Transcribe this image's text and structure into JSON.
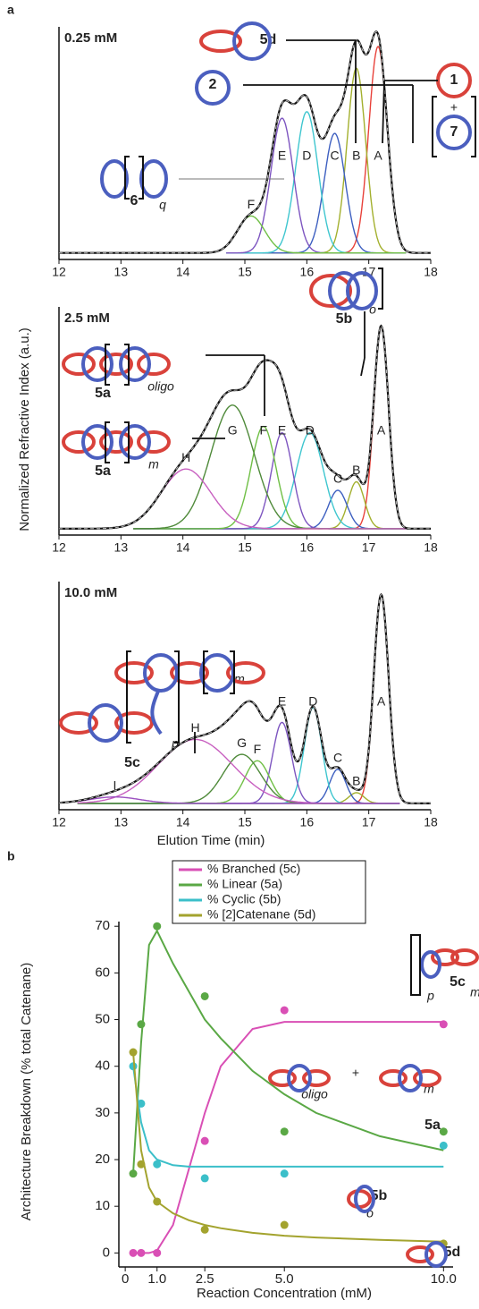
{
  "panel_labels": [
    "a",
    "b"
  ],
  "chart_data": [
    {
      "type": "chromatogram",
      "title": "0.25 mM",
      "ylabel": "Normalized Refractive Index (a.u.)",
      "xlim": [
        12,
        18
      ],
      "xticks": [
        12,
        13,
        14,
        15,
        16,
        17,
        18
      ],
      "ylim": [
        -0.03,
        1.02
      ],
      "fit_range": [
        14.7,
        17.6
      ],
      "peaks": [
        {
          "label": "A",
          "center": 17.15,
          "height": 0.95,
          "width": 0.15,
          "color": "#e8413a"
        },
        {
          "label": "B",
          "center": 16.8,
          "height": 0.85,
          "width": 0.15,
          "color": "#a3b02e"
        },
        {
          "label": "C",
          "center": 16.45,
          "height": 0.55,
          "width": 0.17,
          "color": "#3d5fc0"
        },
        {
          "label": "D",
          "center": 16.0,
          "height": 0.65,
          "width": 0.18,
          "color": "#3fc6cf"
        },
        {
          "label": "E",
          "center": 15.6,
          "height": 0.62,
          "width": 0.18,
          "color": "#7d55c0"
        },
        {
          "label": "F",
          "center": 15.1,
          "height": 0.17,
          "width": 0.22,
          "color": "#6fbf45"
        }
      ],
      "annotations": [
        "5d",
        "2",
        "1",
        "+",
        "7",
        "6",
        "q"
      ]
    },
    {
      "type": "chromatogram",
      "title": "2.5 mM",
      "xlim": [
        12,
        18
      ],
      "xticks": [
        12,
        13,
        14,
        15,
        16,
        17,
        18
      ],
      "ylim": [
        -0.03,
        1.02
      ],
      "fit_range": [
        13.2,
        17.7
      ],
      "peaks": [
        {
          "label": "A",
          "center": 17.2,
          "height": 0.95,
          "width": 0.12,
          "color": "#e8413a"
        },
        {
          "label": "B",
          "center": 16.8,
          "height": 0.22,
          "width": 0.13,
          "color": "#a3b02e"
        },
        {
          "label": "C",
          "center": 16.5,
          "height": 0.18,
          "width": 0.15,
          "color": "#3d5fc0"
        },
        {
          "label": "D",
          "center": 16.05,
          "height": 0.45,
          "width": 0.22,
          "color": "#3fc6cf"
        },
        {
          "label": "E",
          "center": 15.6,
          "height": 0.45,
          "width": 0.17,
          "color": "#7d55c0"
        },
        {
          "label": "F",
          "center": 15.3,
          "height": 0.48,
          "width": 0.2,
          "color": "#6fbf45"
        },
        {
          "label": "G",
          "center": 14.8,
          "height": 0.58,
          "width": 0.35,
          "color": "#4f8a3a"
        },
        {
          "label": "H",
          "center": 14.05,
          "height": 0.28,
          "width": 0.4,
          "color": "#c860c0"
        }
      ],
      "annotations": [
        "5a",
        "oligo",
        "5a",
        "m",
        "5b",
        "o"
      ]
    },
    {
      "type": "chromatogram",
      "title": "10.0 mM",
      "xlabel": "Elution Time (min)",
      "xlim": [
        12,
        18
      ],
      "xticks": [
        12,
        13,
        14,
        15,
        16,
        17,
        18
      ],
      "ylim": [
        -0.03,
        1.02
      ],
      "fit_range": [
        12.3,
        17.5
      ],
      "peaks": [
        {
          "label": "A",
          "center": 17.2,
          "height": 0.98,
          "width": 0.12,
          "color": "#e8413a"
        },
        {
          "label": "B",
          "center": 16.8,
          "height": 0.05,
          "width": 0.12,
          "color": "#a3b02e"
        },
        {
          "label": "C",
          "center": 16.5,
          "height": 0.16,
          "width": 0.13,
          "color": "#3d5fc0"
        },
        {
          "label": "D",
          "center": 16.1,
          "height": 0.45,
          "width": 0.14,
          "color": "#3fc6cf"
        },
        {
          "label": "E",
          "center": 15.6,
          "height": 0.38,
          "width": 0.15,
          "color": "#7d55c0"
        },
        {
          "label": "F",
          "center": 15.2,
          "height": 0.2,
          "width": 0.2,
          "color": "#6fbf45"
        },
        {
          "label": "G",
          "center": 14.95,
          "height": 0.23,
          "width": 0.3,
          "color": "#4f8a3a"
        },
        {
          "label": "H",
          "center": 14.2,
          "height": 0.3,
          "width": 0.6,
          "color": "#c860c0"
        },
        {
          "label": "I",
          "center": 12.9,
          "height": 0.03,
          "width": 0.4,
          "color": "#9b4fc0"
        }
      ],
      "annotations": [
        "5c",
        "m",
        "p"
      ]
    },
    {
      "type": "scatter",
      "xlabel": "Reaction Concentration (mM)",
      "ylabel": "Architecture Breakdown (% total Catenane)",
      "xlim": [
        -0.2,
        10.3
      ],
      "xticks": [
        0,
        {
          "value": 1,
          "label": "1.0"
        },
        2.5,
        {
          "value": 5,
          "label": "5.0"
        },
        {
          "value": 10,
          "label": "10.0"
        }
      ],
      "ylim": [
        -3,
        71
      ],
      "yticks": [
        0,
        10,
        20,
        30,
        40,
        50,
        60,
        70
      ],
      "x": [
        0.25,
        0.5,
        1,
        2.5,
        5,
        10
      ],
      "fit_x": [
        0.25,
        0.5,
        0.75,
        1,
        1.5,
        2,
        2.5,
        3,
        4,
        5,
        6,
        8,
        10
      ],
      "series": [
        {
          "name": "% Branched (5c)",
          "color": "#d94fb5",
          "values": [
            0,
            0,
            0,
            24,
            52,
            49
          ],
          "fit": [
            0,
            0,
            0,
            0.5,
            6,
            18,
            30,
            40,
            48,
            49.5,
            49.5,
            49.5,
            49.5
          ]
        },
        {
          "name": "% Linear (5a)",
          "color": "#5aa845",
          "values": [
            17,
            49,
            70,
            55,
            26,
            26
          ],
          "fit": [
            17,
            45,
            66,
            69,
            62,
            56,
            50,
            46,
            39,
            34,
            30,
            25,
            22
          ]
        },
        {
          "name": "% Cyclic (5b)",
          "color": "#3bbfc9",
          "values": [
            40,
            32,
            19,
            16,
            17,
            23
          ],
          "fit": [
            40,
            28,
            22,
            20,
            18.8,
            18.5,
            18.5,
            18.5,
            18.5,
            18.5,
            18.5,
            18.5,
            18.5
          ]
        },
        {
          "name": "% [2]Catenane (5d)",
          "color": "#a3a32e",
          "values": [
            43,
            19,
            11,
            5,
            6,
            2
          ],
          "fit": [
            43,
            22,
            14,
            11,
            8.5,
            7,
            6,
            5.3,
            4.3,
            3.7,
            3.3,
            2.8,
            2.4
          ]
        }
      ],
      "annotations": [
        "5c",
        "m",
        "p",
        "oligo",
        "+",
        "m",
        "5a",
        "5b",
        "o",
        "5d"
      ]
    }
  ]
}
